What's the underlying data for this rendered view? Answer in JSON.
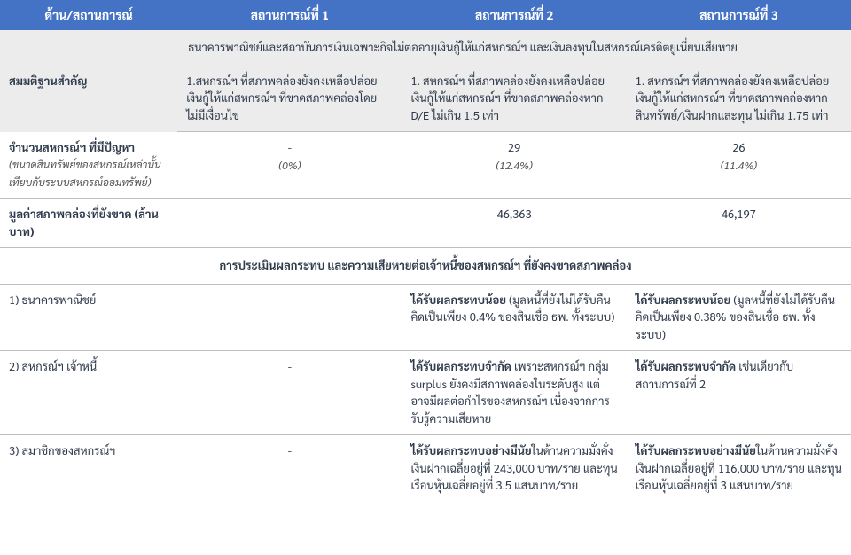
{
  "header": {
    "col0": "ด้าน/สถานการณ์",
    "col1": "สถานการณ์ที่ 1",
    "col2": "สถานการณ์ที่ 2",
    "col3": "สถานการณ์ที่ 3"
  },
  "assumption": {
    "label": "สมมติฐานสำคัญ",
    "common": "ธนาคารพาณิชย์และสถาบันการเงินเฉพาะกิจไม่ต่ออายุเงินกู้ให้แก่สหกรณ์ฯ และเงินลงทุนในสหกรณ์เครดิตยูเนี่ยนเสียหาย",
    "s1": "1.สหกรณ์ฯ ที่สภาพคล่องยังคงเหลือปล่อยเงินกู้ให้แก่สหกรณ์ฯ ที่ขาดสภาพคล่องโดยไม่มีเงื่อนไข",
    "s2": "1. สหกรณ์ฯ ที่สภาพคล่องยังคงเหลือปล่อยเงินกู้ให้แก่สหกรณ์ฯ ที่ขาดสภาพคล่องหาก D/E ไม่เกิน 1.5 เท่า",
    "s3": "1. สหกรณ์ฯ ที่สภาพคล่องยังคงเหลือปล่อยเงินกู้ให้แก่สหกรณ์ฯ ที่ขาดสภาพคล่องหาก สินทรัพย์/เงินฝากและทุน ไม่เกิน 1.75 เท่า"
  },
  "problem_coops": {
    "label": "จำนวนสหกรณ์ฯ ที่มีปัญหา",
    "sublabel": "(ขนาดสินทรัพย์ของสหกรณ์เหล่านั้นเทียบกับระบบสหกรณ์ออมทรัพย์)",
    "s1_val": "-",
    "s1_pct": "(0%)",
    "s2_val": "29",
    "s2_pct": "(12.4%)",
    "s3_val": "26",
    "s3_pct": "(11.4%)"
  },
  "shortfall": {
    "label": "มูลค่าสภาพคล่องที่ยังขาด (ล้านบาท)",
    "s1": "-",
    "s2": "46,363",
    "s3": "46,197"
  },
  "impact_title": "การประเมินผลกระทบ และความเสียหายต่อเจ้าหนี้ของสหกรณ์ฯ ที่ยังคงขาดสภาพคล่อง",
  "row_bank": {
    "label": "1) ธนาคารพาณิชย์",
    "s1": "-",
    "s2_bold": "ได้รับผลกระทบน้อย",
    "s2_rest": " (มูลหนี้ที่ยังไม่ได้รับคืนคิดเป็นเพียง 0.4% ของสินเชื่อ ธพ. ทั้งระบบ)",
    "s3_bold": "ได้รับผลกระทบน้อย",
    "s3_rest": " (มูลหนี้ที่ยังไม่ได้รับคืนคิดเป็นเพียง 0.38% ของสินเชื่อ ธพ. ทั้งระบบ)"
  },
  "row_creditor": {
    "label": "2) สหกรณ์ฯ เจ้าหนี้",
    "s1": "-",
    "s2_bold": "ได้รับผลกระทบจำกัด",
    "s2_rest": " เพราะสหกรณ์ฯ กลุ่ม surplus ยังคงมีสภาพคล่องในระดับสูง แต่อาจมีผลต่อกำไรของสหกรณ์ฯ เนื่องจากการรับรู้ความเสียหาย",
    "s3_bold": "ได้รับผลกระทบจำกัด",
    "s3_rest": " เช่นเดียวกับสถานการณ์ที่ 2"
  },
  "row_member": {
    "label": "3) สมาชิกของสหกรณ์ฯ",
    "s1": "-",
    "s2_bold": "ได้รับผลกระทบอย่างมีนัย",
    "s2_rest": "ในด้านความมั่งคั่ง เงินฝากเฉลี่ยอยู่ที่ 243,000 บาท/ราย และทุนเรือนหุ้นเฉลี่ยอยู่ที่ 3.5 แสนบาท/ราย",
    "s3_bold": "ได้รับผลกระทบอย่างมีนัย",
    "s3_rest": "ในด้านความมั่งคั่ง เงินฝากเฉลี่ยอยู่ที่ 116,000 บาท/ราย และทุนเรือนหุ้นเฉลี่ยอยู่ที่ 3 แสนบาท/ราย"
  },
  "colors": {
    "header_bg": "#4472c4",
    "header_fg": "#ffffff",
    "gray_bg": "#ececec",
    "border": "#bfbfbf",
    "text": "#2f3b4c"
  }
}
